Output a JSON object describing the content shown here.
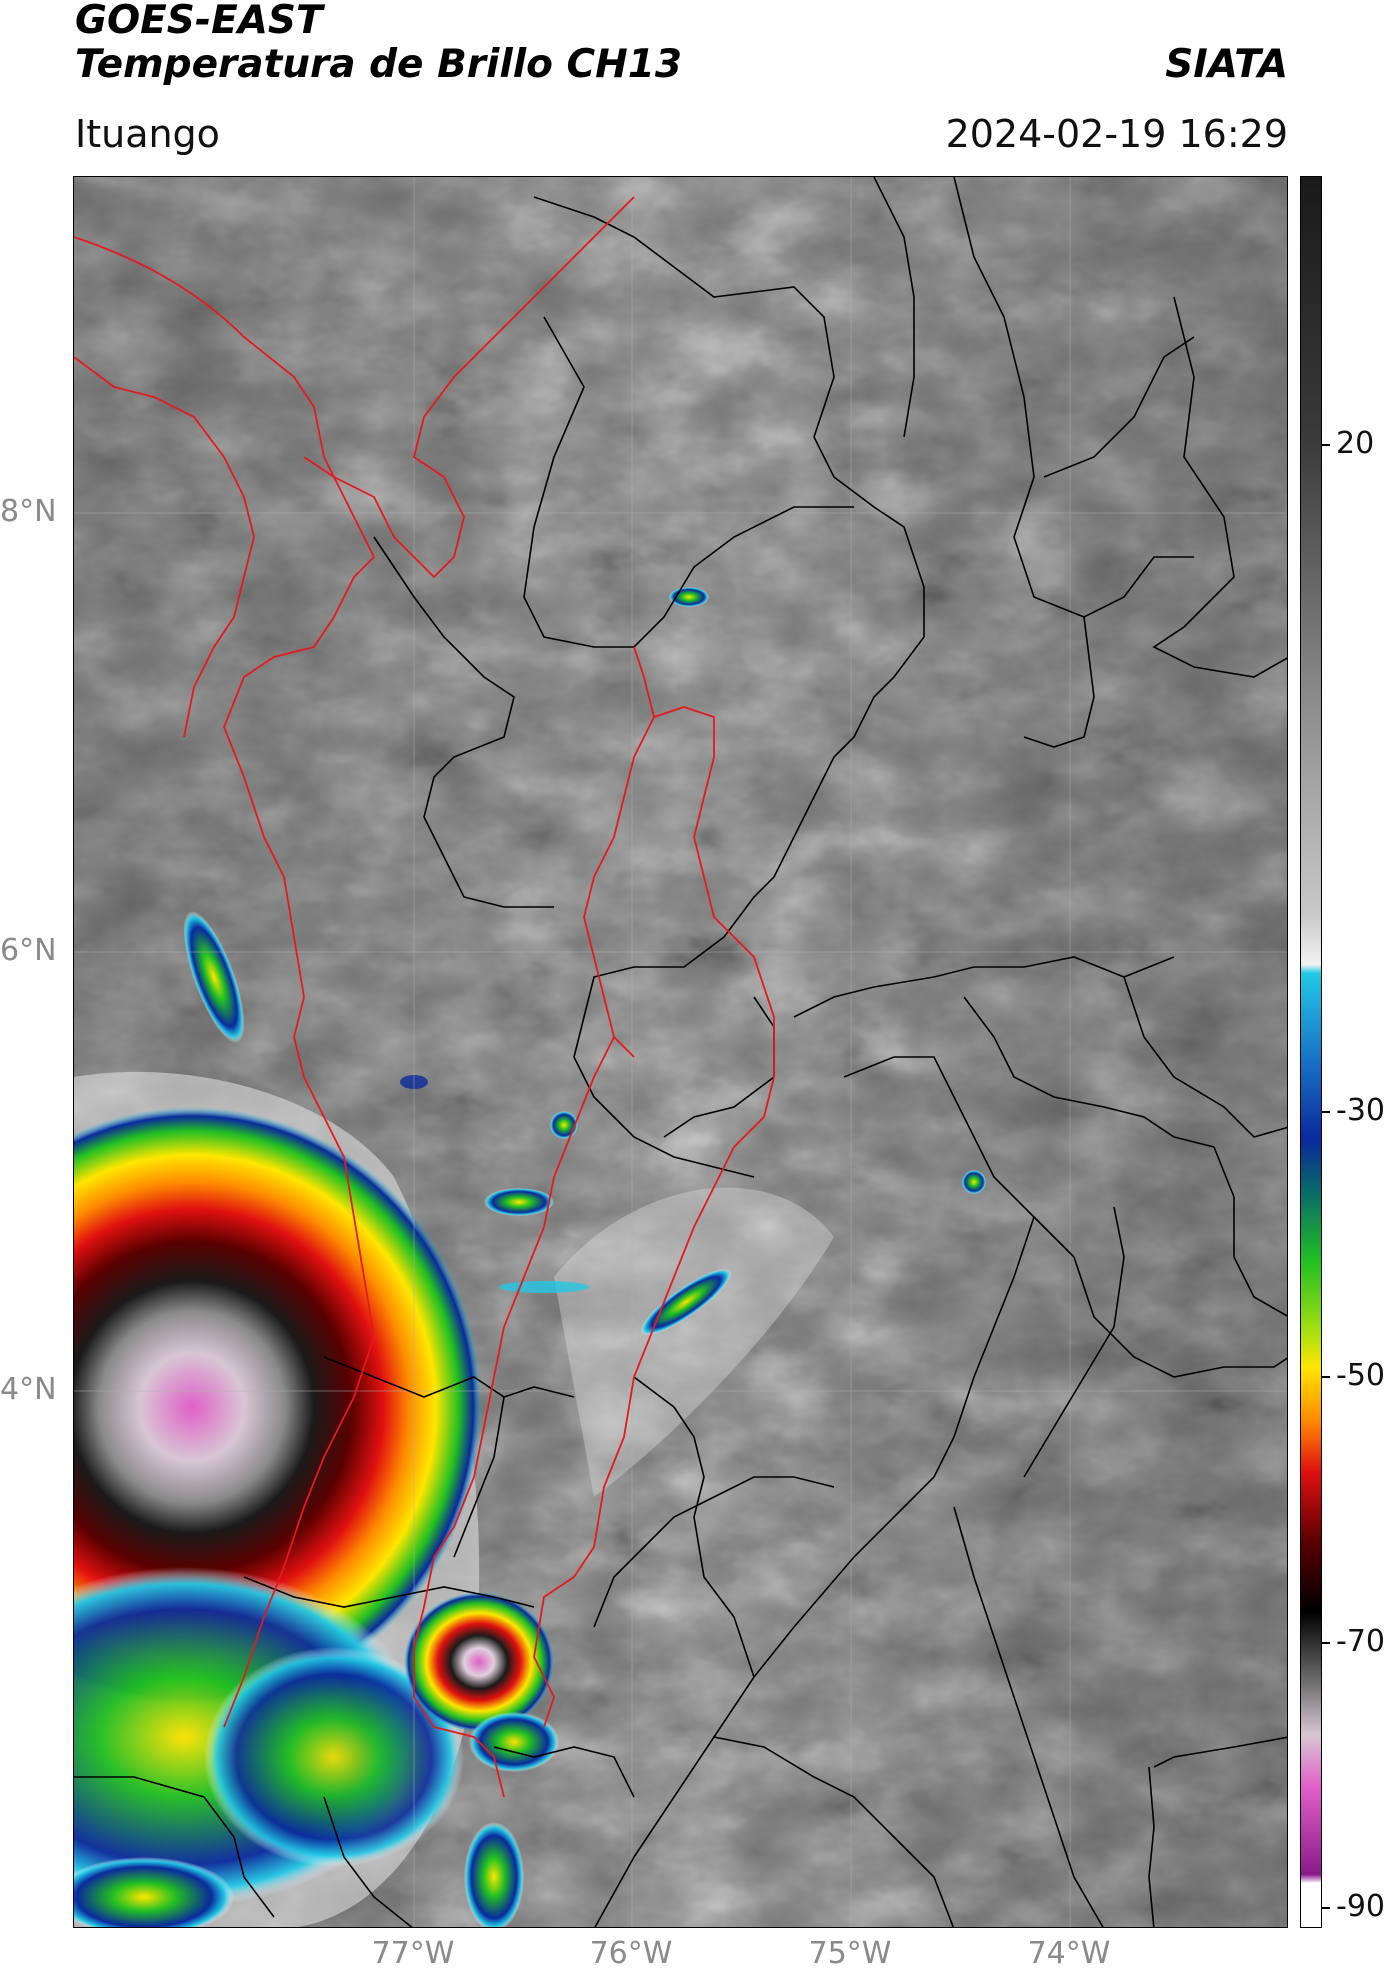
{
  "header": {
    "title_line1": "GOES-EAST",
    "title_line2": "Temperatura de Brillo CH13",
    "org": "SIATA",
    "location": "Ituango",
    "datetime": "2024-02-19 16:29"
  },
  "axes": {
    "lat_labels": [
      "8°N",
      "6°N",
      "4°N"
    ],
    "lon_labels": [
      "77°W",
      "76°W",
      "75°W",
      "74°W"
    ]
  },
  "colorbar": {
    "ticks": [
      "20",
      "-30",
      "-50",
      "-70",
      "-90"
    ],
    "colors": {
      "warm_dark": "#1a1a1a",
      "mid_gray": "#8c8c8c",
      "light": "#f2f2f2",
      "cyan": "#22c8e6",
      "blue": "#0a2a9c",
      "green": "#22c022",
      "yellow": "#ffe600",
      "orange": "#ff8c00",
      "red": "#e01010",
      "dark_red": "#5a0000",
      "magenta": "#e060c8",
      "purple": "#8a1a8a"
    }
  },
  "map": {
    "border_colors": {
      "department": "#000000",
      "highlight": "#e41a1c"
    }
  }
}
